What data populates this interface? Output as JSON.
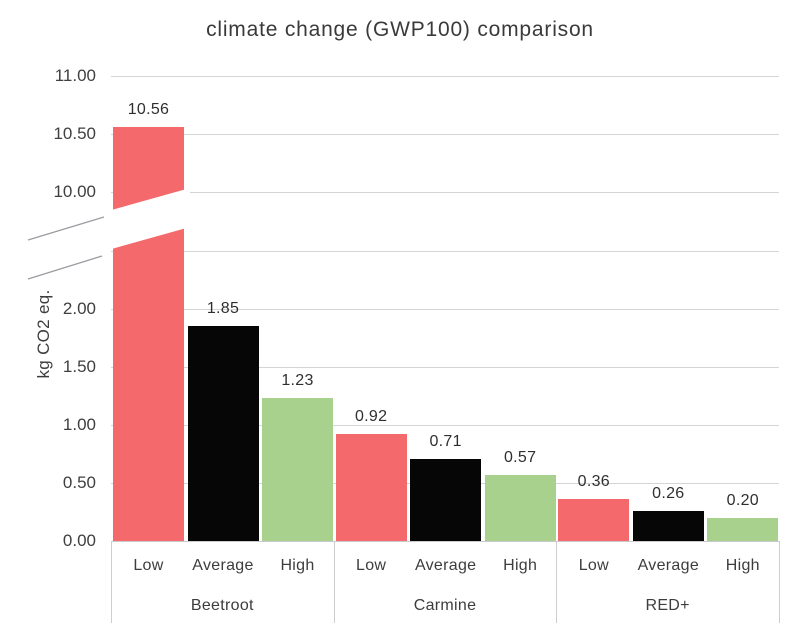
{
  "title": "climate change (GWP100) comparison",
  "y_axis": {
    "title": "kg CO2 eq.",
    "ticks": [
      {
        "label": "0.00",
        "value": 0
      },
      {
        "label": "0.50",
        "value": 0.5
      },
      {
        "label": "1.00",
        "value": 1
      },
      {
        "label": "1.50",
        "value": 1.5
      },
      {
        "label": "2.00",
        "value": 2
      },
      {
        "label": "10.00",
        "value": 10
      },
      {
        "label": "10.50",
        "value": 10.5
      },
      {
        "label": "11.00",
        "value": 11
      }
    ],
    "unlabeled_gridlines": [
      2.5
    ],
    "break": {
      "lower_max": 2.5,
      "upper_min": 10,
      "upper_max": 11
    }
  },
  "chart_data": {
    "type": "bar",
    "title": "climate change (GWP100) comparison",
    "xlabel": "",
    "ylabel": "kg CO2 eq.",
    "categories": [
      "Beetroot",
      "Carmine",
      "RED+"
    ],
    "series": [
      {
        "name": "Low",
        "color": "#F4696C",
        "values": [
          10.56,
          0.92,
          0.36
        ]
      },
      {
        "name": "Average",
        "color": "#060606",
        "values": [
          1.85,
          0.71,
          0.26
        ]
      },
      {
        "name": "High",
        "color": "#A9D18E",
        "values": [
          1.23,
          0.57,
          0.2
        ]
      }
    ],
    "value_labels": [
      [
        "10.56",
        "1.85",
        "1.23"
      ],
      [
        "0.92",
        "0.71",
        "0.57"
      ],
      [
        "0.36",
        "0.26",
        "0.20"
      ]
    ],
    "axis_break": true,
    "y_lower_range": [
      0,
      2.5
    ],
    "y_upper_range": [
      10,
      11
    ],
    "grid": true,
    "legend": "none"
  },
  "colors": {
    "bar_low": "#F4696C",
    "bar_average": "#060606",
    "bar_high": "#A9D18E",
    "gridline": "#D5D5D9",
    "divider": "#CDCDD2",
    "break_marks": "#9B9BA1",
    "text": "#3C3C3C",
    "background": "#FFFFFF"
  }
}
